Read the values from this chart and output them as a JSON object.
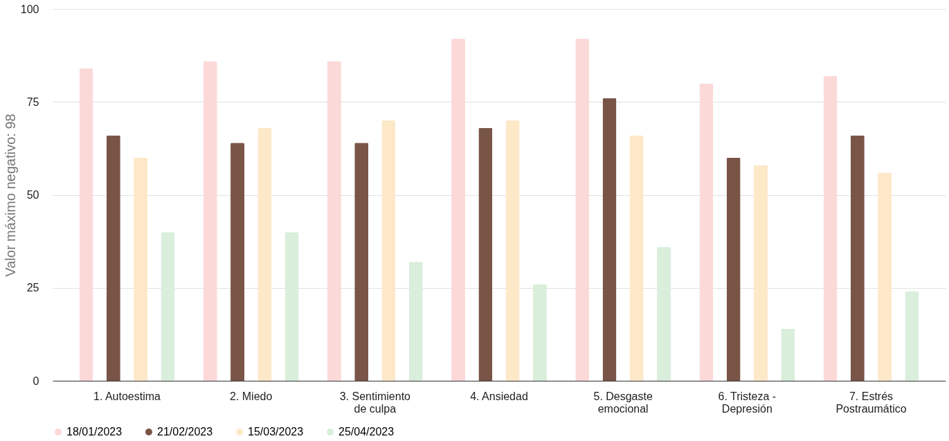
{
  "chart_data": {
    "type": "bar",
    "ylabel": "Valor máximo negativo: 98",
    "categories": [
      "1. Autoestima",
      "2. Miedo",
      "3. Sentimiento de culpa",
      "4. Ansiedad",
      "5. Desgaste emocional",
      "6. Tristeza - Depresión",
      "7. Estrés Postraumático"
    ],
    "series": [
      {
        "name": "18/01/2023",
        "color": "#fcd9d9",
        "values": [
          84,
          86,
          86,
          92,
          92,
          80,
          82
        ]
      },
      {
        "name": "21/02/2023",
        "color": "#795548",
        "values": [
          66,
          64,
          64,
          68,
          76,
          60,
          66
        ]
      },
      {
        "name": "15/03/2023",
        "color": "#fde8c8",
        "values": [
          60,
          68,
          70,
          70,
          66,
          58,
          56
        ]
      },
      {
        "name": "25/04/2023",
        "color": "#d9eedb",
        "values": [
          40,
          40,
          32,
          26,
          36,
          14,
          24
        ]
      }
    ],
    "ylim": [
      0,
      100
    ],
    "yticks": [
      0,
      25,
      50,
      75,
      100
    ],
    "grid": "y",
    "legend": "bottom"
  }
}
